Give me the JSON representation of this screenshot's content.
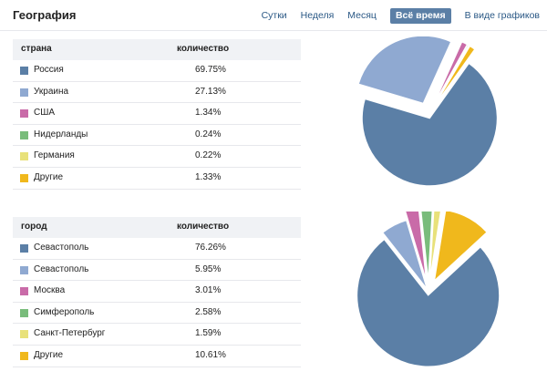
{
  "header": {
    "title": "География",
    "tabs": [
      {
        "label": "Сутки",
        "active": false
      },
      {
        "label": "Неделя",
        "active": false
      },
      {
        "label": "Месяц",
        "active": false
      },
      {
        "label": "Всё время",
        "active": true
      },
      {
        "label": "В виде графиков",
        "active": false
      }
    ]
  },
  "country_table": {
    "col1": "страна",
    "col2": "количество",
    "rows": [
      {
        "label": "Россия",
        "value": "69.75%",
        "color": "#5b7fa6"
      },
      {
        "label": "Украина",
        "value": "27.13%",
        "color": "#8fa9d1"
      },
      {
        "label": "США",
        "value": "1.34%",
        "color": "#c96ba8"
      },
      {
        "label": "Нидерланды",
        "value": "0.24%",
        "color": "#79bc7b"
      },
      {
        "label": "Германия",
        "value": "0.22%",
        "color": "#e8e17a"
      },
      {
        "label": "Другие",
        "value": "1.33%",
        "color": "#f0b81c"
      }
    ]
  },
  "city_table": {
    "col1": "город",
    "col2": "количество",
    "rows": [
      {
        "label": "Севастополь",
        "value": "76.26%",
        "color": "#5b7fa6"
      },
      {
        "label": "Севастополь",
        "value": "5.95%",
        "color": "#8fa9d1"
      },
      {
        "label": "Москва",
        "value": "3.01%",
        "color": "#c96ba8"
      },
      {
        "label": "Симферополь",
        "value": "2.58%",
        "color": "#79bc7b"
      },
      {
        "label": "Санкт-Петербург",
        "value": "1.59%",
        "color": "#e8e17a"
      },
      {
        "label": "Другие",
        "value": "10.61%",
        "color": "#f0b81c"
      }
    ]
  },
  "chart_data": [
    {
      "type": "pie",
      "categories": [
        "Россия",
        "Украина",
        "США",
        "Нидерланды",
        "Германия",
        "Другие"
      ],
      "values": [
        69.75,
        27.13,
        1.34,
        0.24,
        0.22,
        1.33
      ],
      "colors": [
        "#5b7fa6",
        "#8fa9d1",
        "#c96ba8",
        "#79bc7b",
        "#e8e17a",
        "#f0b81c"
      ],
      "exploded": [
        "Россия"
      ]
    },
    {
      "type": "pie",
      "categories": [
        "Севастополь",
        "Севастополь",
        "Москва",
        "Симферополь",
        "Санкт-Петербург",
        "Другие"
      ],
      "values": [
        76.26,
        5.95,
        3.01,
        2.58,
        1.59,
        10.61
      ],
      "colors": [
        "#5b7fa6",
        "#8fa9d1",
        "#c96ba8",
        "#79bc7b",
        "#e8e17a",
        "#f0b81c"
      ],
      "exploded": [
        "Севастополь"
      ]
    }
  ]
}
